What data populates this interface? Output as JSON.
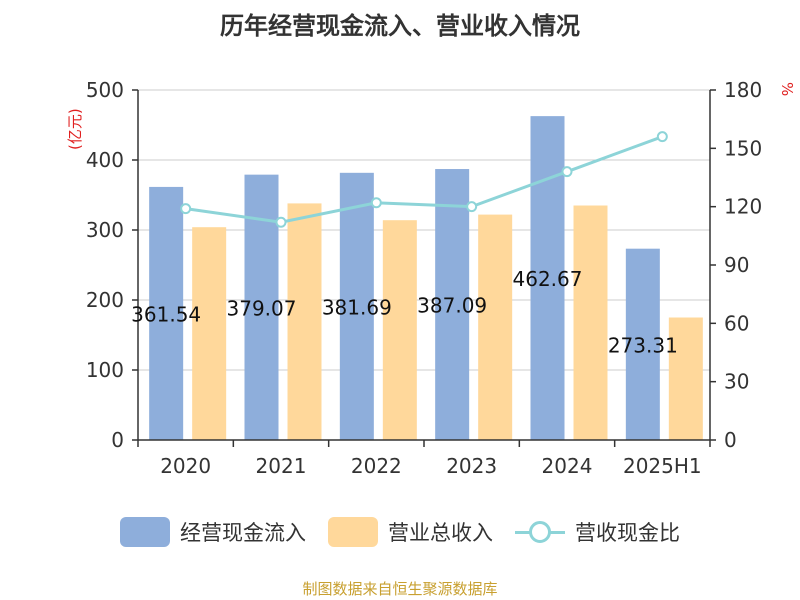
{
  "chart_data": {
    "type": "bar",
    "title": "历年经营现金流入、营业收入情况",
    "categories": [
      "2020",
      "2021",
      "2022",
      "2023",
      "2024",
      "2025H1"
    ],
    "y_left_unit": "(亿元)",
    "y_right_unit": "%",
    "y_left_lim": [
      0,
      500
    ],
    "y_right_lim": [
      0,
      180
    ],
    "y_left_ticks": [
      0,
      100,
      200,
      300,
      400,
      500
    ],
    "y_right_ticks": [
      0,
      30,
      60,
      90,
      120,
      150,
      180
    ],
    "series": [
      {
        "name": "经营现金流入",
        "type": "bar",
        "axis": "left",
        "color": "#8eaedb",
        "values": [
          361.54,
          379.07,
          381.69,
          387.09,
          462.67,
          273.31
        ],
        "labels": [
          "361.54",
          "379.07",
          "381.69",
          "387.09",
          "462.67",
          "273.31"
        ]
      },
      {
        "name": "营业总收入",
        "type": "bar",
        "axis": "left",
        "color": "#ffd89b",
        "values": [
          304,
          338,
          314,
          322,
          335,
          175
        ]
      },
      {
        "name": "营收现金比",
        "type": "line",
        "axis": "right",
        "color": "#8dd4d8",
        "values": [
          119,
          112,
          122,
          120,
          138,
          156
        ]
      }
    ],
    "legend_position": "bottom",
    "grid": true
  },
  "footer": "制图数据来自恒生聚源数据库"
}
